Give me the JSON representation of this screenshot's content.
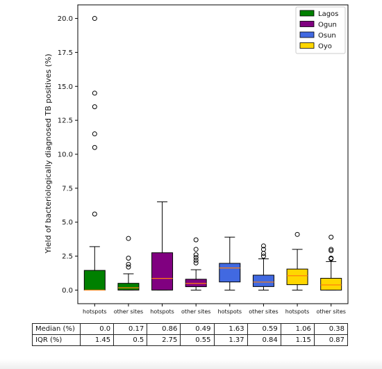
{
  "chart_data": {
    "type": "boxplot",
    "ylabel": "Yield of bacteriologically diagnosed TB positives (%)",
    "xlabel": "",
    "ylim": [
      -1.0,
      21.0
    ],
    "yticks": [
      0.0,
      2.5,
      5.0,
      7.5,
      10.0,
      12.5,
      15.0,
      17.5,
      20.0
    ],
    "ytick_labels": [
      "0.0",
      "2.5",
      "5.0",
      "7.5",
      "10.0",
      "12.5",
      "15.0",
      "17.5",
      "20.0"
    ],
    "legend_position": "top-right",
    "grid": false,
    "legend": [
      {
        "name": "Lagos",
        "color": "#008000"
      },
      {
        "name": "Ogun",
        "color": "#800080"
      },
      {
        "name": "Osun",
        "color": "#4169e1"
      },
      {
        "name": "Oyo",
        "color": "#ffd700"
      }
    ],
    "boxes": [
      {
        "label": "hotspots",
        "state": "Lagos",
        "color": "#008000",
        "q1": 0.0,
        "median": 0.0,
        "q3": 1.45,
        "whisker_low": 0.0,
        "whisker_high": 3.2,
        "outliers": [
          5.6,
          10.5,
          11.5,
          13.5,
          14.5,
          20.0
        ]
      },
      {
        "label": "other sites",
        "state": "Lagos",
        "color": "#008000",
        "q1": 0.0,
        "median": 0.17,
        "q3": 0.5,
        "whisker_low": 0.0,
        "whisker_high": 1.2,
        "outliers": [
          1.7,
          1.9,
          2.35,
          3.8
        ]
      },
      {
        "label": "hotspots",
        "state": "Ogun",
        "color": "#800080",
        "q1": 0.0,
        "median": 0.86,
        "q3": 2.75,
        "whisker_low": 0.0,
        "whisker_high": 6.5,
        "outliers": []
      },
      {
        "label": "other sites",
        "state": "Ogun",
        "color": "#800080",
        "q1": 0.25,
        "median": 0.49,
        "q3": 0.8,
        "whisker_low": 0.0,
        "whisker_high": 1.5,
        "outliers": [
          2.0,
          2.2,
          2.4,
          2.6,
          3.0,
          3.7
        ]
      },
      {
        "label": "hotspots",
        "state": "Osun",
        "color": "#4169e1",
        "q1": 0.6,
        "median": 1.63,
        "q3": 1.97,
        "whisker_low": 0.0,
        "whisker_high": 3.9,
        "outliers": []
      },
      {
        "label": "other sites",
        "state": "Osun",
        "color": "#4169e1",
        "q1": 0.26,
        "median": 0.59,
        "q3": 1.1,
        "whisker_low": 0.0,
        "whisker_high": 2.3,
        "outliers": [
          2.5,
          2.7,
          3.0,
          3.25
        ]
      },
      {
        "label": "hotspots",
        "state": "Oyo",
        "color": "#ffd700",
        "q1": 0.4,
        "median": 1.06,
        "q3": 1.55,
        "whisker_low": 0.0,
        "whisker_high": 3.0,
        "outliers": [
          4.1
        ]
      },
      {
        "label": "other sites",
        "state": "Oyo",
        "color": "#ffd700",
        "q1": 0.0,
        "median": 0.38,
        "q3": 0.87,
        "whisker_low": 0.0,
        "whisker_high": 2.1,
        "outliers": [
          2.3,
          2.35,
          2.9,
          3.0,
          3.9
        ]
      }
    ]
  },
  "table": {
    "rows": [
      {
        "label": "Median (%)",
        "values": [
          "0.0",
          "0.17",
          "0.86",
          "0.49",
          "1.63",
          "0.59",
          "1.06",
          "0.38"
        ]
      },
      {
        "label": "IQR (%)",
        "values": [
          "1.45",
          "0.5",
          "2.75",
          "0.55",
          "1.37",
          "0.84",
          "1.15",
          "0.87"
        ]
      }
    ]
  }
}
